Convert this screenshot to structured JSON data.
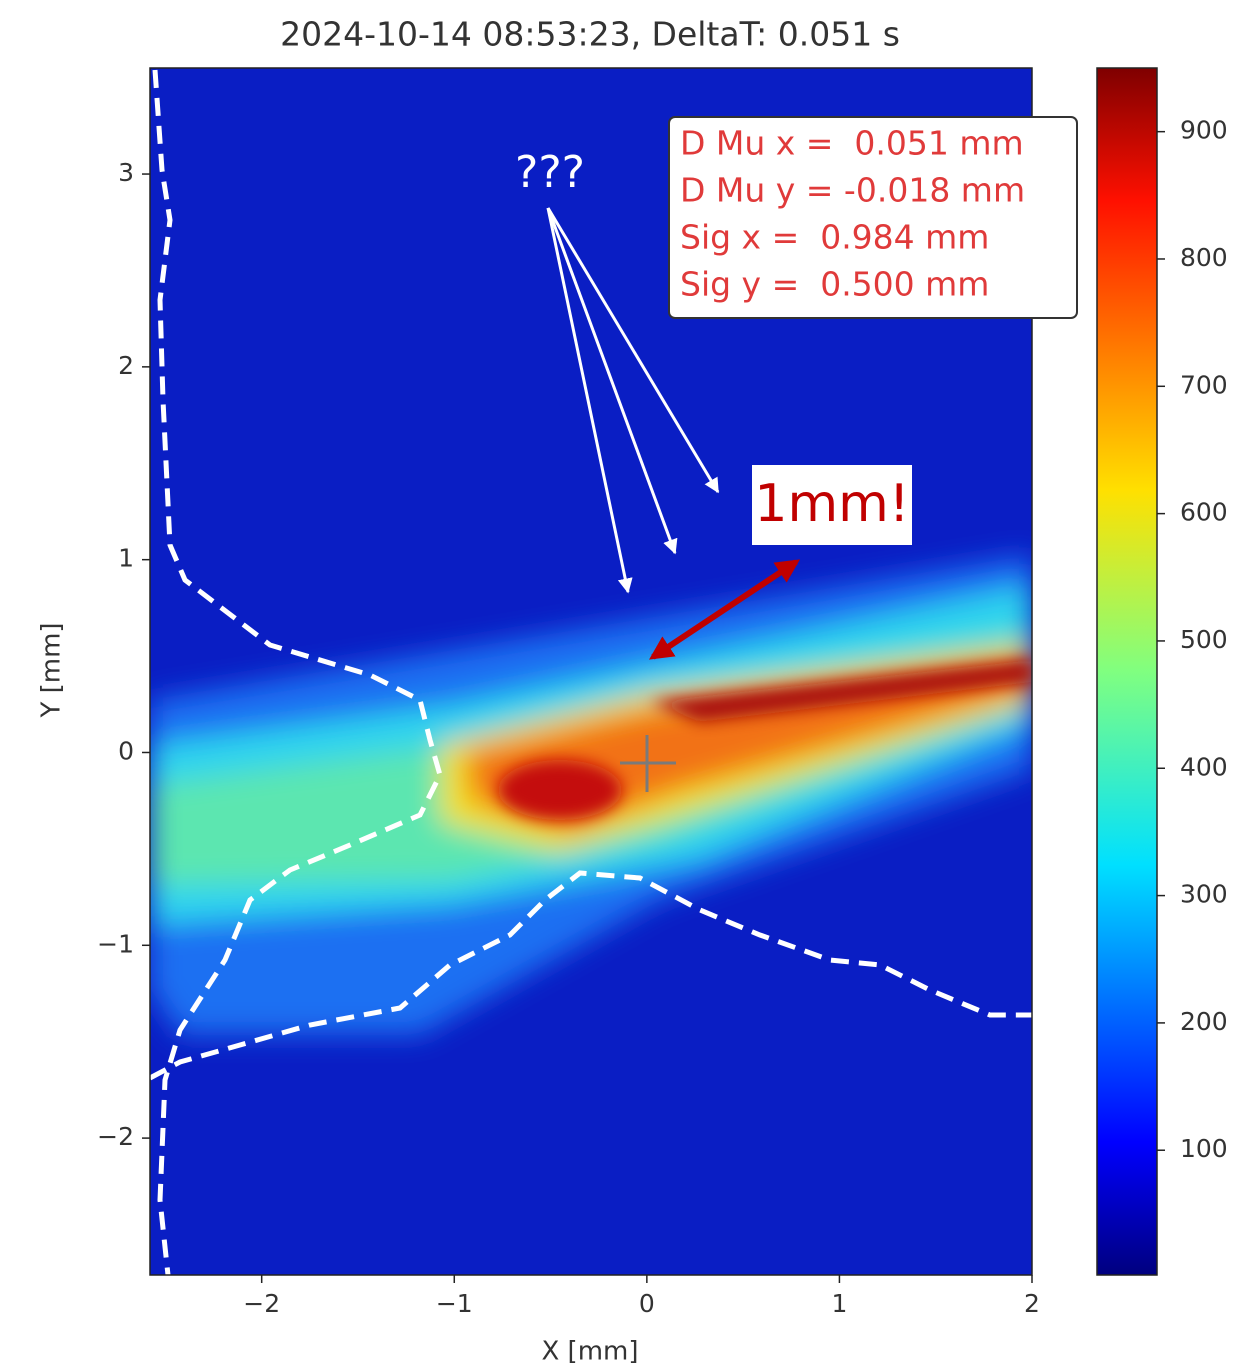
{
  "chart_data": {
    "type": "heatmap",
    "title": "2024-10-14 08:53:23, DeltaT: 0.051 s",
    "x_label": "X [mm]",
    "y_label": "Y [mm]",
    "xlim": [
      -2.58,
      2
    ],
    "ylim": [
      -2.71,
      3.55
    ],
    "xticks": [
      {
        "value": -2,
        "label": "−2"
      },
      {
        "value": -1,
        "label": "−1"
      },
      0,
      1,
      2
    ],
    "yticks": [
      {
        "value": -2,
        "label": "−2"
      },
      {
        "value": -1,
        "label": "−1"
      },
      0,
      1,
      2,
      3
    ],
    "colorbar": {
      "clim": [
        2,
        950
      ],
      "ticks": [
        100,
        200,
        300,
        400,
        500,
        600,
        700,
        800,
        900
      ]
    },
    "stats_box": [
      "D Mu x =  0.051 mm",
      "D Mu y = -0.018 mm",
      "Sig x =  0.984 mm",
      "Sig y =  0.500 mm"
    ],
    "annotations": {
      "question": "???",
      "width_note": "1mm!"
    }
  }
}
